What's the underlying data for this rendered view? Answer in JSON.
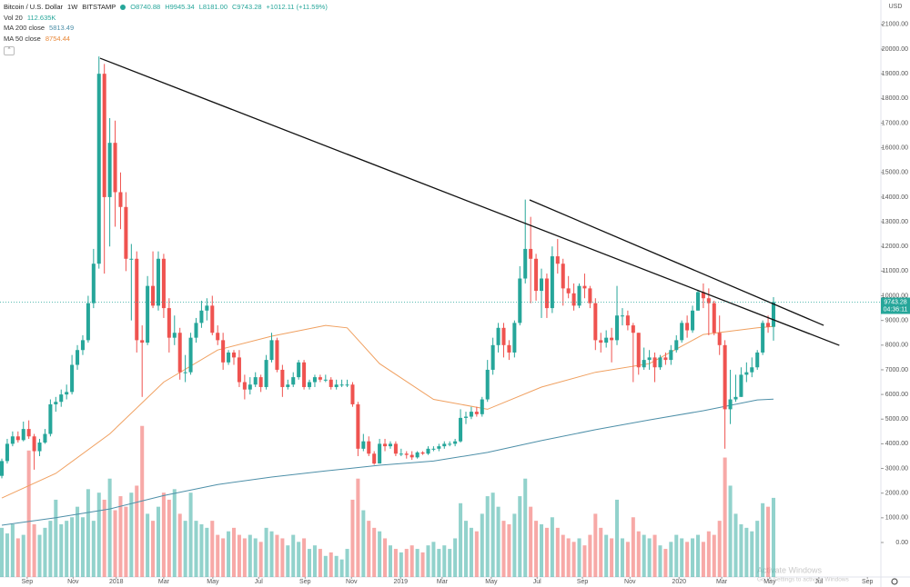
{
  "chart_data": {
    "type": "candlestick",
    "title": "Bitcoin / U.S. Dollar",
    "interval": "1W",
    "exchange": "BITSTAMP",
    "ohlc_legend": [
      "O8740.88",
      "H9945.34",
      "L8181.00",
      "C9743.28",
      "+1012.11 (+11.59%)"
    ],
    "indicators": [
      {
        "name": "Vol 20",
        "value_label": "112.635K"
      },
      {
        "name": "MA 200 close",
        "value_label": "5813.49"
      },
      {
        "name": "MA 50 close",
        "value_label": "8754.44"
      }
    ],
    "currency": "USD",
    "countdown": "04:36:11",
    "up_color": "#26a69a",
    "down_color": "#ef5350",
    "open": [
      2700,
      3300,
      4000,
      4300,
      4150,
      4600,
      4300,
      3700,
      4050,
      4400,
      5600,
      5700,
      6000,
      6100,
      7200,
      7800,
      8200,
      9700,
      11300,
      19000,
      14000,
      16200,
      14200,
      13600,
      11500,
      11500,
      8200,
      8100,
      10400,
      9600,
      11500,
      9500,
      8300,
      8500,
      6900,
      6900,
      8300,
      8900,
      9400,
      9600,
      8500,
      8200,
      7300,
      7700,
      7500,
      6500,
      6200,
      6400,
      6700,
      6300,
      7400,
      8200,
      7000,
      6300,
      6400,
      6700,
      7300,
      6300,
      6500,
      6700,
      6600,
      6600,
      6300,
      6400,
      6400,
      6400,
      5600,
      3800,
      4100,
      3600,
      3200,
      4000,
      3900,
      4000,
      3600,
      3600,
      3550,
      3450,
      3650,
      3600,
      3800,
      3800,
      3900,
      4000,
      4000,
      4100,
      5050,
      5100,
      5300,
      5200,
      5800,
      7000,
      8000,
      8700,
      8000,
      7700,
      8900,
      10700,
      11900,
      11500,
      10200,
      10700,
      9500,
      11600,
      11300,
      10300,
      10100,
      9600,
      10400,
      10300,
      9700,
      8200,
      8100,
      8300,
      8200,
      9200,
      9200,
      8800,
      8500,
      7100,
      7400,
      7500,
      7100,
      7500,
      7400,
      7800,
      8200,
      8900,
      8600,
      9400,
      10150,
      9900,
      9700,
      8500,
      8000,
      5400,
      5800,
      5900,
      6800,
      6900,
      7100,
      7700,
      8900,
      8740.88
    ],
    "high": [
      3400,
      4200,
      4500,
      4500,
      4900,
      4950,
      4400,
      4200,
      4600,
      5800,
      5900,
      6200,
      6400,
      7600,
      8000,
      8400,
      10000,
      11900,
      19700,
      19400,
      17200,
      17100,
      15000,
      14200,
      12100,
      11800,
      8800,
      10800,
      11800,
      11800,
      11700,
      9900,
      9200,
      8700,
      7600,
      8500,
      9100,
      9800,
      9900,
      10000,
      8800,
      8500,
      7800,
      7800,
      7800,
      6800,
      6700,
      6900,
      6800,
      7600,
      8500,
      8300,
      7200,
      6600,
      6900,
      7400,
      7400,
      6600,
      6800,
      6800,
      6800,
      6700,
      6600,
      6600,
      6600,
      6500,
      5700,
      4400,
      4300,
      3700,
      4200,
      4200,
      4100,
      4100,
      3800,
      3700,
      3700,
      3700,
      3700,
      3900,
      3900,
      4000,
      4100,
      4100,
      4200,
      5400,
      5300,
      5500,
      5500,
      5900,
      7400,
      8300,
      8900,
      8900,
      8200,
      9000,
      11200,
      13900,
      13200,
      11700,
      11100,
      10900,
      12000,
      12300,
      11500,
      10800,
      10500,
      10500,
      10900,
      10400,
      9900,
      8500,
      8600,
      8700,
      10400,
      9500,
      9400,
      8900,
      8500,
      7900,
      7800,
      7700,
      7600,
      7700,
      8000,
      8400,
      9000,
      9200,
      9600,
      10200,
      10500,
      10300,
      9800,
      9200,
      8200,
      7000,
      6800,
      7100,
      7300,
      7500,
      7800,
      9000,
      9200,
      9945.34
    ],
    "low": [
      2600,
      3200,
      3900,
      4050,
      4100,
      4200,
      2950,
      3500,
      4000,
      4300,
      5300,
      5500,
      5800,
      6000,
      7000,
      7600,
      8100,
      9500,
      11100,
      10900,
      12000,
      12800,
      12700,
      11000,
      9000,
      7700,
      5900,
      8000,
      9500,
      9400,
      9100,
      7700,
      8000,
      6600,
      6500,
      6800,
      8100,
      8700,
      9000,
      8400,
      8000,
      7000,
      7200,
      7200,
      6300,
      5800,
      6000,
      6300,
      6100,
      6200,
      7300,
      6900,
      5900,
      6200,
      6300,
      6600,
      6200,
      6200,
      6300,
      6500,
      6500,
      6200,
      6200,
      6300,
      6300,
      5500,
      3500,
      3700,
      3500,
      3150,
      3200,
      3700,
      3800,
      3500,
      3500,
      3400,
      3350,
      3400,
      3550,
      3550,
      3700,
      3700,
      3800,
      3900,
      3900,
      4050,
      4800,
      5000,
      5100,
      5100,
      5700,
      6800,
      7700,
      7500,
      7400,
      7500,
      8800,
      10500,
      9700,
      9800,
      9100,
      9100,
      9300,
      10900,
      9600,
      9900,
      9400,
      9500,
      9900,
      9500,
      7800,
      7700,
      7900,
      7300,
      8000,
      8800,
      8600,
      6500,
      6800,
      7000,
      7000,
      6500,
      7000,
      7200,
      7200,
      7700,
      8100,
      8300,
      8500,
      9400,
      9500,
      8400,
      8400,
      7600,
      3800,
      4800,
      5700,
      5900,
      6500,
      6700,
      7000,
      7600,
      8500,
      8181
    ],
    "close": [
      3300,
      4000,
      4300,
      4150,
      4600,
      4300,
      3700,
      4050,
      4400,
      5600,
      5700,
      6000,
      6100,
      7200,
      7800,
      8200,
      9700,
      11300,
      19000,
      14000,
      16200,
      14200,
      13600,
      11500,
      11500,
      8200,
      8100,
      10400,
      9600,
      11500,
      9500,
      8300,
      8500,
      6900,
      6900,
      8300,
      8900,
      9400,
      9600,
      8500,
      8200,
      7300,
      7700,
      7500,
      6500,
      6200,
      6400,
      6700,
      6300,
      7400,
      8200,
      7000,
      6300,
      6400,
      6700,
      7300,
      6300,
      6500,
      6700,
      6600,
      6600,
      6300,
      6400,
      6400,
      6400,
      5600,
      3800,
      4100,
      3600,
      3200,
      4000,
      3900,
      4000,
      3600,
      3600,
      3550,
      3450,
      3650,
      3600,
      3800,
      3800,
      3900,
      4000,
      4000,
      4100,
      5050,
      5100,
      5300,
      5200,
      5800,
      7000,
      8000,
      8700,
      8000,
      7700,
      8900,
      10700,
      11900,
      11500,
      10200,
      10700,
      9500,
      11600,
      11300,
      10300,
      10100,
      9600,
      10400,
      10300,
      9700,
      8200,
      8100,
      8300,
      8200,
      9200,
      9200,
      8800,
      8500,
      7100,
      7400,
      7500,
      7100,
      7500,
      7400,
      7800,
      8200,
      8900,
      8600,
      9400,
      10150,
      9900,
      9700,
      8500,
      8000,
      5400,
      5800,
      5900,
      6800,
      6900,
      7100,
      7700,
      8900,
      8740.88,
      9743.28
    ],
    "volume": [
      70,
      62,
      75,
      55,
      60,
      180,
      75,
      60,
      70,
      80,
      110,
      75,
      80,
      85,
      100,
      85,
      125,
      80,
      120,
      110,
      140,
      95,
      115,
      100,
      120,
      130,
      215,
      90,
      80,
      100,
      120,
      110,
      125,
      90,
      80,
      120,
      80,
      75,
      70,
      80,
      60,
      55,
      65,
      70,
      60,
      55,
      60,
      55,
      50,
      70,
      65,
      60,
      55,
      45,
      60,
      50,
      55,
      40,
      45,
      40,
      30,
      35,
      30,
      25,
      40,
      110,
      140,
      95,
      80,
      70,
      65,
      55,
      45,
      40,
      35,
      40,
      45,
      40,
      35,
      45,
      50,
      40,
      45,
      40,
      55,
      105,
      80,
      70,
      65,
      90,
      115,
      120,
      100,
      80,
      75,
      90,
      115,
      140,
      100,
      80,
      75,
      70,
      85,
      70,
      60,
      55,
      50,
      55,
      45,
      60,
      90,
      70,
      60,
      55,
      110,
      55,
      50,
      85,
      65,
      60,
      55,
      60,
      45,
      40,
      50,
      60,
      55,
      50,
      55,
      60,
      50,
      65,
      60,
      80,
      170,
      130,
      90,
      75,
      70,
      65,
      80,
      105,
      100,
      112.635
    ],
    "volume_lim": [
      0,
      300
    ],
    "moving_averages": [
      {
        "name": "MA 200 close",
        "color": "#4d8fa8",
        "x": [
          0,
          10,
          20,
          30,
          40,
          50,
          60,
          70,
          80,
          90,
          100,
          110,
          120,
          130,
          140,
          143
        ],
        "values": [
          700,
          1000,
          1360,
          1900,
          2350,
          2650,
          2900,
          3130,
          3300,
          3650,
          4130,
          4570,
          4970,
          5340,
          5780,
          5813.49
        ]
      },
      {
        "name": "MA 50 close",
        "color": "#f0a060",
        "x": [
          0,
          10,
          20,
          30,
          40,
          50,
          60,
          64,
          70,
          80,
          90,
          100,
          110,
          120,
          130,
          140,
          143
        ],
        "values": [
          1800,
          2800,
          4400,
          6500,
          7800,
          8360,
          8800,
          8700,
          7250,
          5800,
          5400,
          6300,
          6900,
          7250,
          8430,
          8700,
          8754.44
        ]
      }
    ],
    "trendlines": [
      {
        "color": "#111111",
        "x": [
          18.2,
          155.2
        ],
        "y": [
          19630,
          7990
        ]
      },
      {
        "color": "#111111",
        "x": [
          97.8,
          152.3
        ],
        "y": [
          13886,
          8800
        ]
      }
    ],
    "xlim": [
      -0.34,
      162.9
    ],
    "xticks": [
      {
        "value": 4.7,
        "label": "Sep"
      },
      {
        "value": 13.2,
        "label": "Nov"
      },
      {
        "value": 21.2,
        "label": "2018"
      },
      {
        "value": 30.0,
        "label": "Mar"
      },
      {
        "value": 39.1,
        "label": "May"
      },
      {
        "value": 47.6,
        "label": "Jul"
      },
      {
        "value": 56.2,
        "label": "Sep"
      },
      {
        "value": 64.8,
        "label": "Nov"
      },
      {
        "value": 73.9,
        "label": "2019"
      },
      {
        "value": 81.6,
        "label": "Mar"
      },
      {
        "value": 90.7,
        "label": "May"
      },
      {
        "value": 99.2,
        "label": "Jul"
      },
      {
        "value": 107.6,
        "label": "Sep"
      },
      {
        "value": 116.4,
        "label": "Nov"
      },
      {
        "value": 125.5,
        "label": "2020"
      },
      {
        "value": 133.4,
        "label": "Mar"
      },
      {
        "value": 142.3,
        "label": "May"
      },
      {
        "value": 151.4,
        "label": "Jul"
      },
      {
        "value": 160.4,
        "label": "Sep"
      }
    ],
    "ylim": [
      -1400,
      21990
    ],
    "yticks": [
      {
        "value": 0,
        "label": "0.00"
      },
      {
        "value": 1000,
        "label": "1000.00"
      },
      {
        "value": 2000,
        "label": "2000.00"
      },
      {
        "value": 3000,
        "label": "3000.00"
      },
      {
        "value": 4000,
        "label": "4000.00"
      },
      {
        "value": 5000,
        "label": "5000.00"
      },
      {
        "value": 6000,
        "label": "6000.00"
      },
      {
        "value": 7000,
        "label": "7000.00"
      },
      {
        "value": 8000,
        "label": "8000.00"
      },
      {
        "value": 9000,
        "label": "9000.00"
      },
      {
        "value": 10000,
        "label": "10000.00"
      },
      {
        "value": 11000,
        "label": "11000.00"
      },
      {
        "value": 12000,
        "label": "12000.00"
      },
      {
        "value": 13000,
        "label": "13000.00"
      },
      {
        "value": 14000,
        "label": "14000.00"
      },
      {
        "value": 15000,
        "label": "15000.00"
      },
      {
        "value": 16000,
        "label": "16000.00"
      },
      {
        "value": 17000,
        "label": "17000.00"
      },
      {
        "value": 18000,
        "label": "18000.00"
      },
      {
        "value": 19000,
        "label": "19000.00"
      },
      {
        "value": 20000,
        "label": "20000.00"
      },
      {
        "value": 21000,
        "label": "21000.00"
      }
    ],
    "grid": false,
    "watermark": [
      "Activate Windows",
      "Go to Settings to activate Windows"
    ]
  }
}
